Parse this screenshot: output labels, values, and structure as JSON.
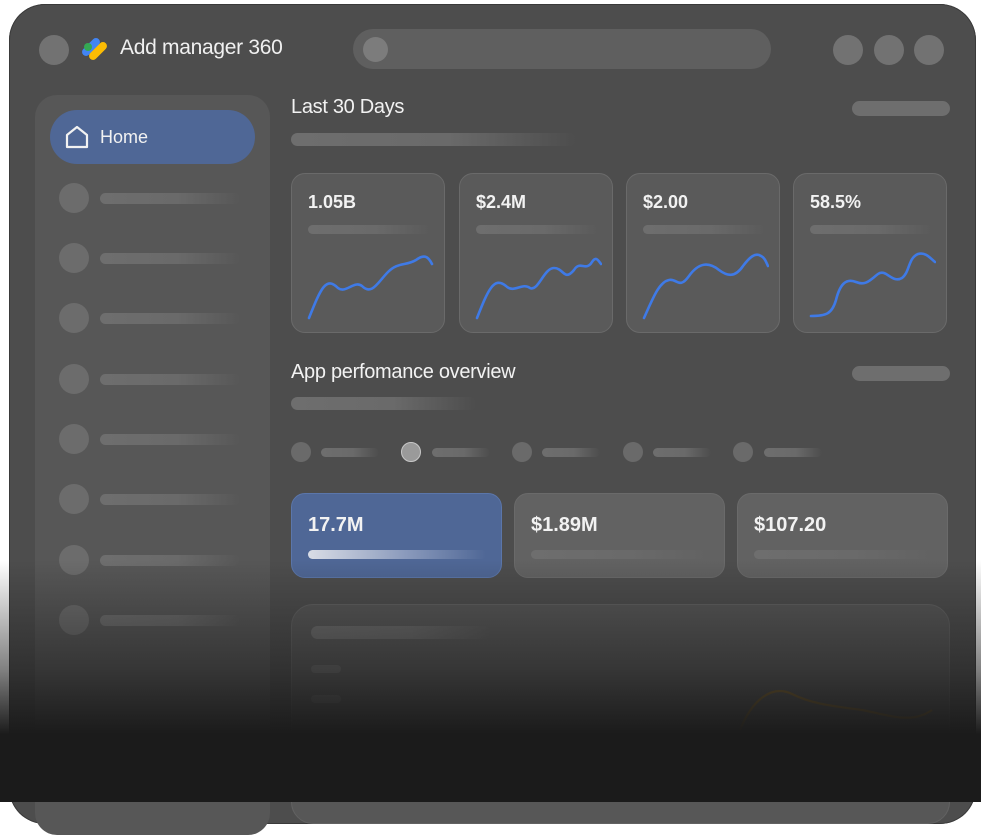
{
  "app": {
    "title": "Add manager 360"
  },
  "sidebar": {
    "home_label": "Home"
  },
  "overview": {
    "title": "Last 30 Days",
    "stats": [
      {
        "value": "1.05B"
      },
      {
        "value": "$2.4M"
      },
      {
        "value": "$2.00"
      },
      {
        "value": "58.5%"
      }
    ]
  },
  "performance": {
    "title": "App perfomance overview",
    "metrics": [
      {
        "value": "17.7M",
        "active": true
      },
      {
        "value": "$1.89M",
        "active": false
      },
      {
        "value": "$107.20",
        "active": false
      }
    ]
  },
  "colors": {
    "accent": "#4f6796",
    "sparkline": "#3f7ae6",
    "chart_line": "#8a6a2a"
  }
}
